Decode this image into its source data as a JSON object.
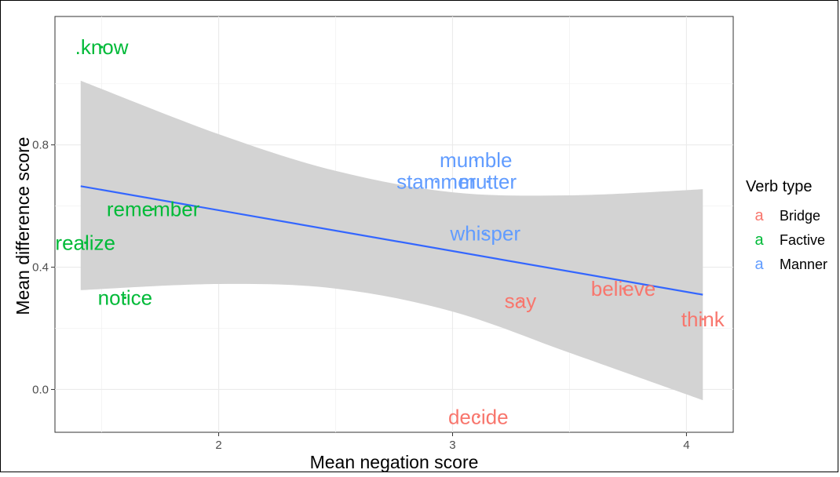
{
  "chart_data": {
    "type": "scatter",
    "xlabel": "Mean negation score",
    "ylabel": "Mean difference score",
    "xlim": [
      1.3,
      4.2
    ],
    "ylim": [
      -0.14,
      1.22
    ],
    "x_ticks": [
      2,
      3,
      4
    ],
    "y_ticks": [
      0.0,
      0.4,
      0.8
    ],
    "x_tick_labels": [
      "2",
      "3",
      "4"
    ],
    "y_tick_labels": [
      "0.0",
      "0.4",
      "0.8"
    ],
    "grid": true,
    "legend": {
      "title": "Verb type",
      "position": "right",
      "key_glyph": "a",
      "entries": [
        {
          "name": "Bridge",
          "color": "#F8766D"
        },
        {
          "name": "Factive",
          "color": "#00BA38"
        },
        {
          "name": "Manner",
          "color": "#619CFF"
        }
      ]
    },
    "points": [
      {
        "label": ".know",
        "x": 1.5,
        "y": 1.12,
        "type": "Factive"
      },
      {
        "label": "remember",
        "x": 1.72,
        "y": 0.59,
        "type": "Factive"
      },
      {
        "label": "realize",
        "x": 1.43,
        "y": 0.48,
        "type": "Factive"
      },
      {
        "label": "notice",
        "x": 1.6,
        "y": 0.3,
        "type": "Factive"
      },
      {
        "label": "mumble",
        "x": 3.1,
        "y": 0.75,
        "type": "Manner"
      },
      {
        "label": "stammer",
        "x": 2.93,
        "y": 0.68,
        "type": "Manner"
      },
      {
        "label": "mutter",
        "x": 3.15,
        "y": 0.68,
        "type": "Manner"
      },
      {
        "label": "whisper",
        "x": 3.14,
        "y": 0.51,
        "type": "Manner"
      },
      {
        "label": "say",
        "x": 3.29,
        "y": 0.29,
        "type": "Bridge"
      },
      {
        "label": "believe",
        "x": 3.73,
        "y": 0.33,
        "type": "Bridge"
      },
      {
        "label": "think",
        "x": 4.07,
        "y": 0.23,
        "type": "Bridge"
      },
      {
        "label": "decide",
        "x": 3.11,
        "y": -0.09,
        "type": "Bridge"
      }
    ],
    "regression": {
      "color": "#3366FF",
      "line": [
        [
          1.41,
          0.665
        ],
        [
          4.07,
          0.31
        ]
      ],
      "ci_upper": [
        [
          1.41,
          1.01
        ],
        [
          2.0,
          0.835
        ],
        [
          2.5,
          0.715
        ],
        [
          3.0,
          0.645
        ],
        [
          3.5,
          0.635
        ],
        [
          4.07,
          0.655
        ]
      ],
      "ci_lower": [
        [
          1.41,
          0.325
        ],
        [
          2.0,
          0.345
        ],
        [
          2.5,
          0.33
        ],
        [
          3.0,
          0.255
        ],
        [
          3.5,
          0.12
        ],
        [
          4.07,
          -0.035
        ]
      ],
      "ci_color": "#D3D3D3"
    }
  }
}
